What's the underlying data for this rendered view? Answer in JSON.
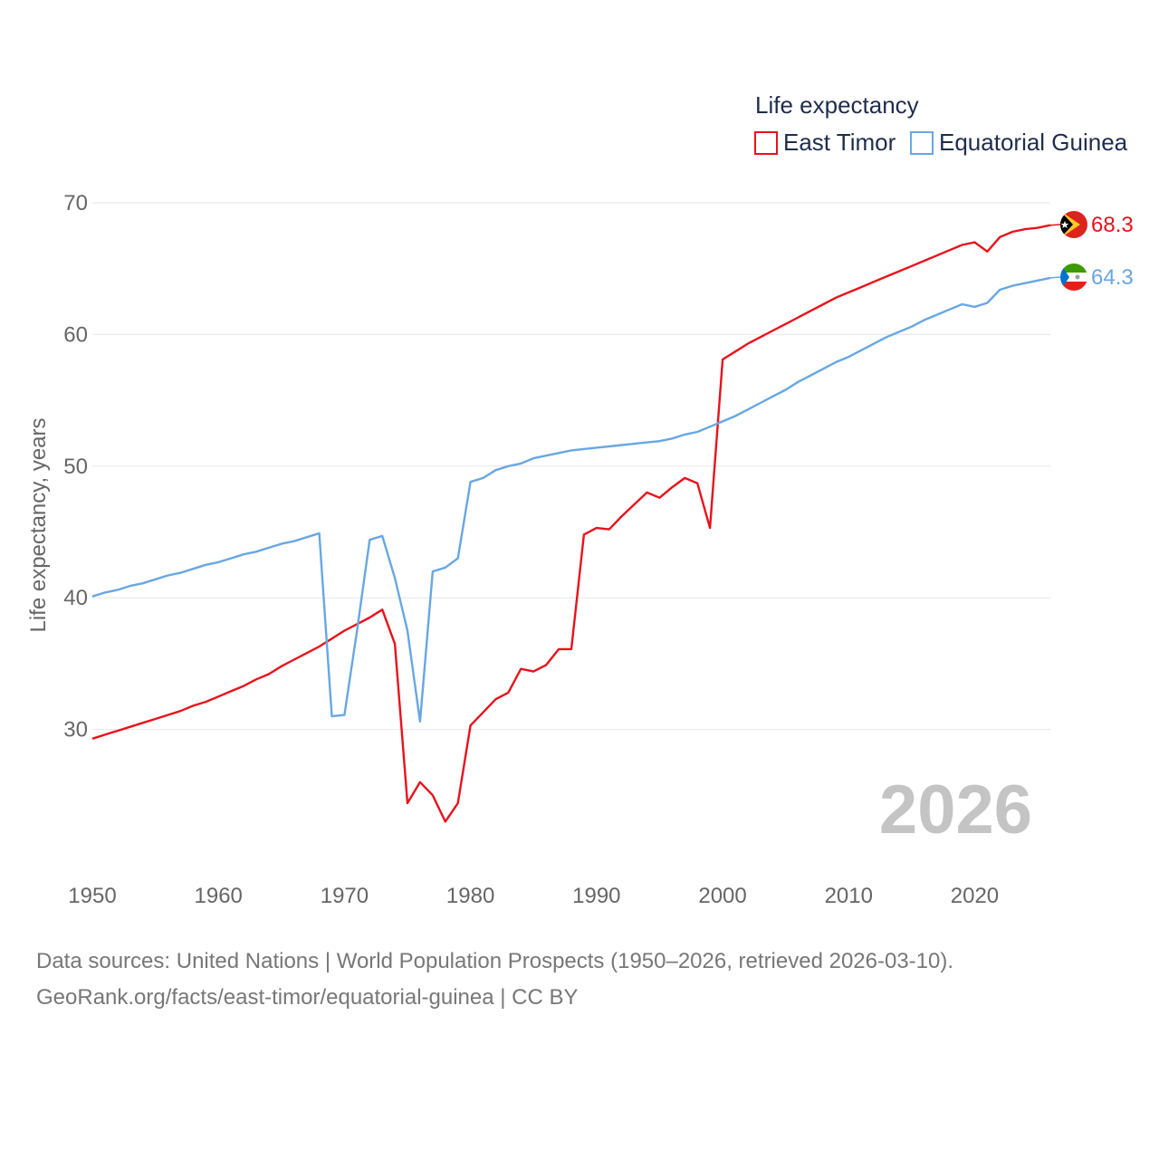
{
  "chart_data": {
    "type": "line",
    "title": "Life expectancy",
    "ylabel": "Life expectancy, years",
    "xlim": [
      1950,
      2026
    ],
    "ylim": [
      20,
      70
    ],
    "xticks": [
      "1950",
      "1960",
      "1970",
      "1980",
      "1990",
      "2000",
      "2010",
      "2020"
    ],
    "yticks": [
      "30",
      "40",
      "50",
      "60",
      "70"
    ],
    "year_label": "2026",
    "x": [
      1950,
      1951,
      1952,
      1953,
      1954,
      1955,
      1956,
      1957,
      1958,
      1959,
      1960,
      1961,
      1962,
      1963,
      1964,
      1965,
      1966,
      1967,
      1968,
      1969,
      1970,
      1971,
      1972,
      1973,
      1974,
      1975,
      1976,
      1977,
      1978,
      1979,
      1980,
      1981,
      1982,
      1983,
      1984,
      1985,
      1986,
      1987,
      1988,
      1989,
      1990,
      1991,
      1992,
      1993,
      1994,
      1995,
      1996,
      1997,
      1998,
      1999,
      2000,
      2001,
      2002,
      2003,
      2004,
      2005,
      2006,
      2007,
      2008,
      2009,
      2010,
      2011,
      2012,
      2013,
      2014,
      2015,
      2016,
      2017,
      2018,
      2019,
      2020,
      2021,
      2022,
      2023,
      2024,
      2025,
      2026
    ],
    "series": [
      {
        "name": "East Timor",
        "color": "#e8121b",
        "end_label": "68.3",
        "flag": "east-timor",
        "values": [
          29.3,
          29.6,
          29.9,
          30.2,
          30.5,
          30.8,
          31.1,
          31.4,
          31.8,
          32.1,
          32.5,
          32.9,
          33.3,
          33.8,
          34.2,
          34.8,
          35.3,
          35.8,
          36.3,
          36.9,
          37.5,
          38.0,
          38.5,
          39.1,
          36.5,
          24.4,
          26.0,
          25.0,
          23.0,
          24.4,
          30.3,
          31.3,
          32.3,
          32.8,
          34.6,
          34.4,
          34.9,
          36.1,
          36.1,
          44.8,
          45.3,
          45.2,
          46.2,
          47.1,
          48.0,
          47.6,
          48.4,
          49.1,
          48.7,
          45.3,
          58.1,
          58.7,
          59.3,
          59.8,
          60.3,
          60.8,
          61.3,
          61.8,
          62.3,
          62.8,
          63.2,
          63.6,
          64.0,
          64.4,
          64.8,
          65.2,
          65.6,
          66.0,
          66.4,
          66.8,
          67.0,
          66.3,
          67.4,
          67.8,
          68.0,
          68.1,
          68.3
        ]
      },
      {
        "name": "Equatorial Guinea",
        "color": "#68a7e2",
        "end_label": "64.3",
        "flag": "equatorial-guinea",
        "values": [
          40.1,
          40.4,
          40.6,
          40.9,
          41.1,
          41.4,
          41.7,
          41.9,
          42.2,
          42.5,
          42.7,
          43.0,
          43.3,
          43.5,
          43.8,
          44.1,
          44.3,
          44.6,
          44.9,
          31.0,
          31.1,
          37.5,
          44.4,
          44.7,
          41.5,
          37.5,
          30.6,
          42.0,
          42.3,
          43.0,
          48.8,
          49.1,
          49.7,
          50.0,
          50.2,
          50.6,
          50.8,
          51.0,
          51.2,
          51.3,
          51.4,
          51.5,
          51.6,
          51.7,
          51.8,
          51.9,
          52.1,
          52.4,
          52.6,
          53.0,
          53.4,
          53.8,
          54.3,
          54.8,
          55.3,
          55.8,
          56.4,
          56.9,
          57.4,
          57.9,
          58.3,
          58.8,
          59.3,
          59.8,
          60.2,
          60.6,
          61.1,
          61.5,
          61.9,
          62.3,
          62.1,
          62.4,
          63.4,
          63.7,
          63.9,
          64.1,
          64.3
        ]
      }
    ]
  },
  "source_lines": [
    "Data sources: United Nations | World Population Prospects (1950–2026, retrieved 2026-03-10).",
    "GeoRank.org/facts/east-timor/equatorial-guinea | CC BY"
  ]
}
